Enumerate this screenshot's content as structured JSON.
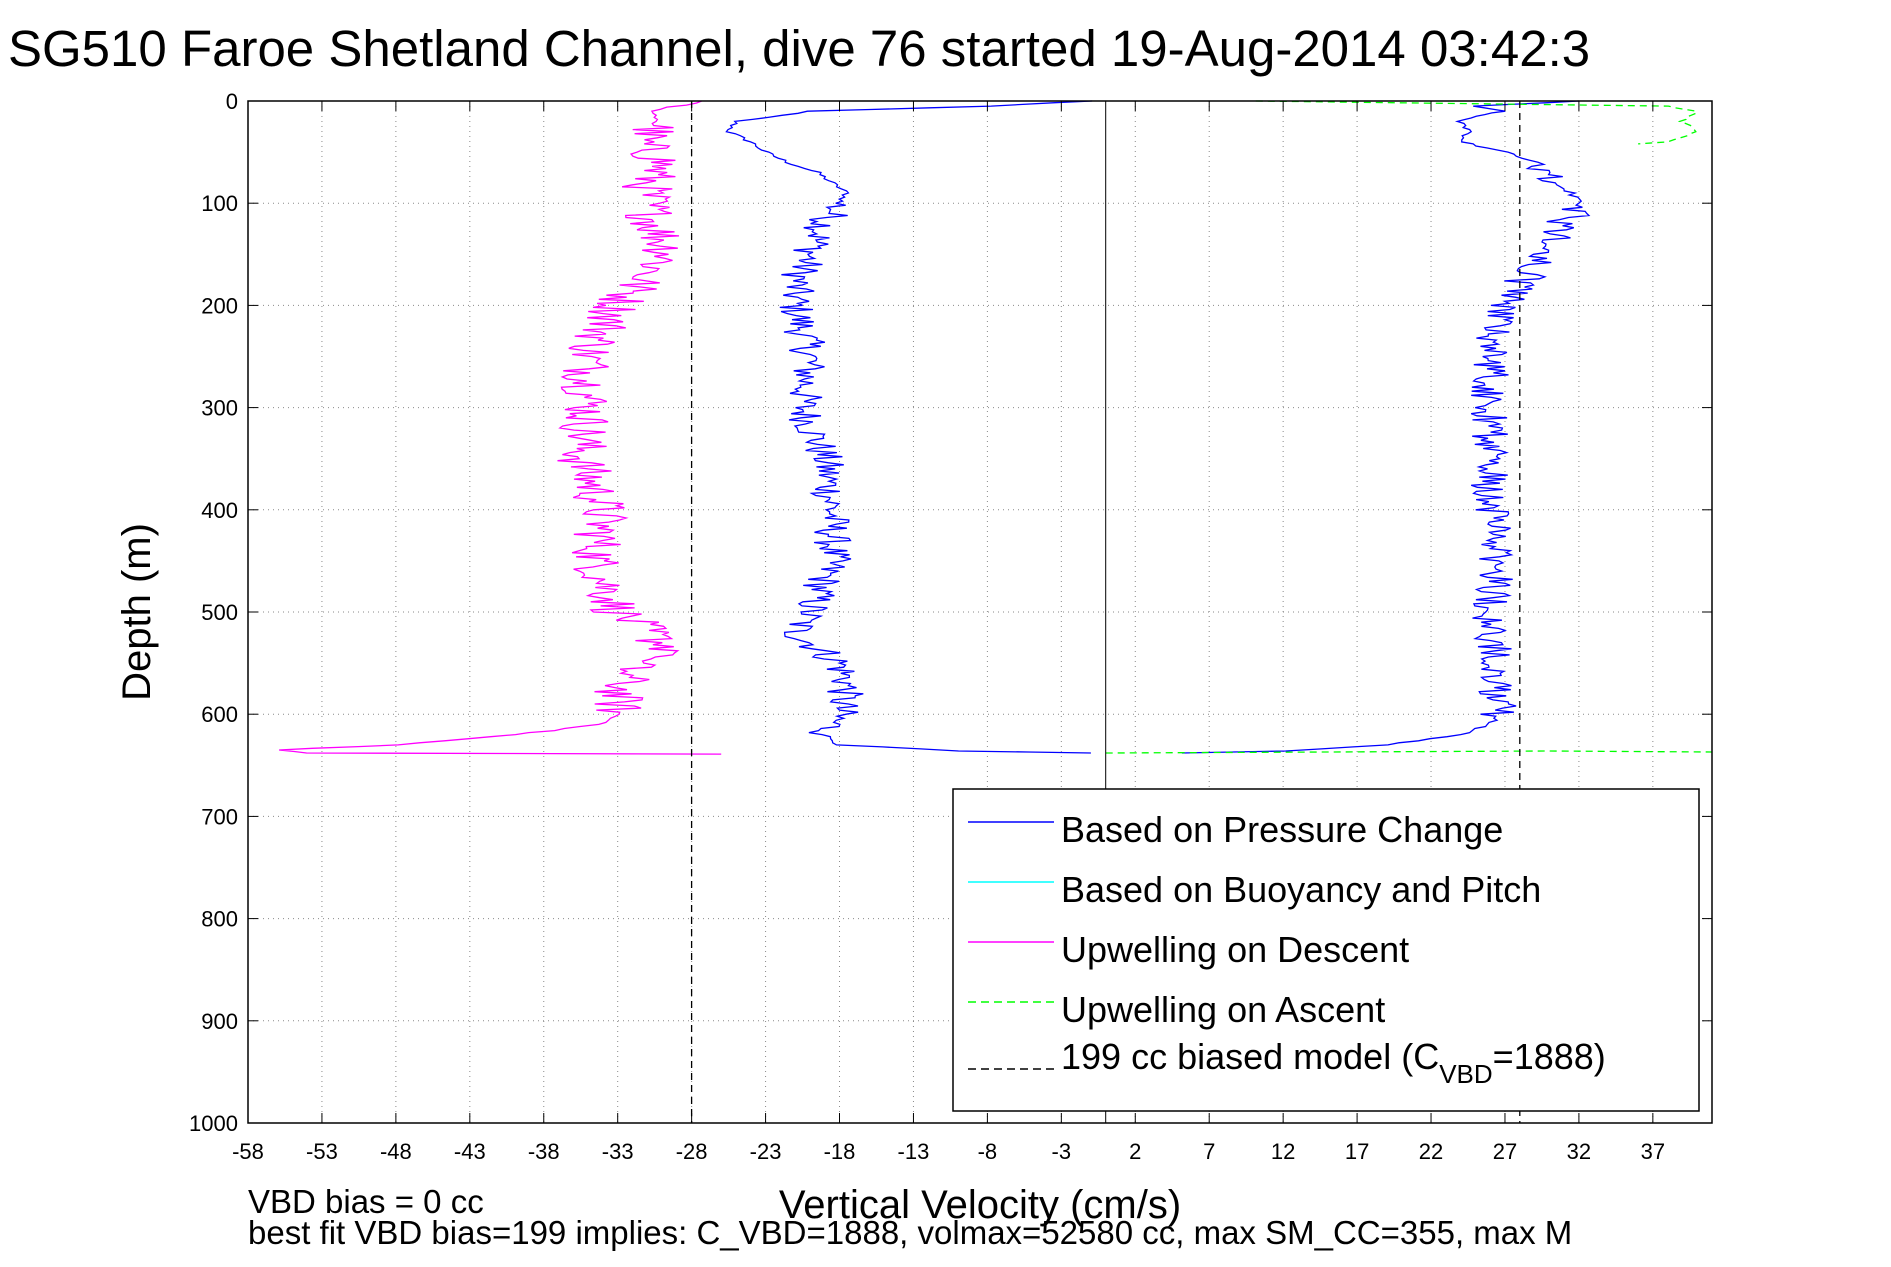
{
  "figure": {
    "title": "SG510 Faroe Shetland Channel, dive 76 started 19-Aug-2014 03:42:3",
    "footer_line1": "VBD bias = 0 cc",
    "footer_line2": "best fit VBD bias=199 implies: C_VBD=1888, volmax=52580 cc, max SM_CC=355, max M"
  },
  "legend": {
    "items": [
      {
        "label": "Based on Pressure Change",
        "color": "#0000ff",
        "dash": "solid"
      },
      {
        "label": "Based on Buoyancy and Pitch",
        "color": "#00ffff",
        "dash": "solid"
      },
      {
        "label": "Upwelling on Descent",
        "color": "#ff00ff",
        "dash": "solid"
      },
      {
        "label": "Upwelling on Ascent",
        "color": "#00ff00",
        "dash": "dashed"
      },
      {
        "label_pre": "199 cc biased model (C",
        "label_sub": "VBD",
        "label_post": "=1888)",
        "color": "#000000",
        "dash": "dashed"
      }
    ]
  },
  "chart_data": {
    "type": "line",
    "title": "SG510 Faroe Shetland Channel, dive 76 started 19-Aug-2014 03:42:3",
    "xlabel": "Vertical Velocity (cm/s)",
    "ylabel": "Depth (m)",
    "xlim": [
      -58,
      41
    ],
    "ylim": [
      0,
      1000
    ],
    "y_reversed": true,
    "grid": true,
    "legend_position": "lower-right",
    "xticks": [
      -58,
      -53,
      -48,
      -43,
      -38,
      -33,
      -28,
      -23,
      -18,
      -13,
      -8,
      -3,
      2,
      7,
      12,
      17,
      22,
      27,
      32,
      37
    ],
    "yticks": [
      0,
      100,
      200,
      300,
      400,
      500,
      600,
      700,
      800,
      900,
      1000
    ],
    "series": [
      {
        "name": "Based on Pressure Change (descent)",
        "color": "#0000ff",
        "dash": "solid",
        "depth": [
          0,
          5,
          10,
          20,
          30,
          40,
          50,
          60,
          70,
          80,
          90,
          100,
          120,
          150,
          180,
          200,
          250,
          300,
          350,
          400,
          450,
          500,
          520,
          550,
          570,
          600,
          620,
          630,
          636,
          638
        ],
        "values": [
          -1,
          -8,
          -20,
          -25,
          -25.5,
          -24,
          -23,
          -21.5,
          -19.5,
          -18.5,
          -17.5,
          -18,
          -19,
          -20,
          -21,
          -21,
          -20,
          -20.5,
          -19,
          -18.5,
          -18.5,
          -20,
          -21,
          -18,
          -17.5,
          -18,
          -19,
          -18,
          -10,
          -1
        ]
      },
      {
        "name": "Based on Pressure Change (ascent)",
        "color": "#0000ff",
        "dash": "solid",
        "depth": [
          638,
          636,
          630,
          620,
          610,
          600,
          550,
          500,
          450,
          400,
          350,
          300,
          250,
          220,
          200,
          180,
          160,
          140,
          120,
          100,
          90,
          80,
          60,
          50,
          40,
          30,
          20,
          15,
          10,
          5,
          0
        ],
        "values": [
          5,
          12,
          19,
          24,
          26,
          26.5,
          26.5,
          26,
          26.5,
          26,
          26,
          26,
          26,
          26.5,
          27,
          28,
          29,
          30,
          31,
          32,
          31.5,
          30,
          29,
          27,
          24,
          24.5,
          24,
          25,
          27,
          25,
          32
        ]
      },
      {
        "name": "Upwelling on Descent",
        "color": "#ff00ff",
        "dash": "solid",
        "depth": [
          0,
          10,
          20,
          40,
          60,
          80,
          100,
          120,
          150,
          170,
          200,
          250,
          300,
          350,
          400,
          450,
          500,
          540,
          550,
          580,
          600,
          610,
          620,
          630,
          635,
          638,
          639
        ],
        "values": [
          -27,
          -31,
          -30,
          -31.5,
          -30,
          -31,
          -31,
          -30.5,
          -29.5,
          -31,
          -33,
          -35,
          -35,
          -35.5,
          -34,
          -34.5,
          -33,
          -29,
          -32,
          -33,
          -33,
          -34,
          -40,
          -48,
          -56,
          -54,
          -26
        ]
      },
      {
        "name": "Upwelling on Ascent",
        "color": "#00ff00",
        "dash": "dashed",
        "depth": [
          0,
          5,
          10,
          20,
          30,
          40,
          42
        ],
        "values": [
          10,
          38,
          40,
          39,
          40,
          38,
          36
        ]
      },
      {
        "name": "Upwelling on Ascent (bottom)",
        "color": "#00ff00",
        "dash": "dashed",
        "depth": [
          638,
          637,
          636,
          637
        ],
        "values": [
          0,
          15,
          30,
          41
        ]
      },
      {
        "name": "199 cc biased model (descent)",
        "color": "#000000",
        "dash": "dashed",
        "depth": [
          0,
          1000
        ],
        "values": [
          -28,
          -28
        ]
      },
      {
        "name": "199 cc biased model (ascent)",
        "color": "#000000",
        "dash": "dashed",
        "depth": [
          0,
          1000
        ],
        "values": [
          28,
          28
        ]
      },
      {
        "name": "zero reference",
        "color": "#000000",
        "dash": "solid",
        "depth": [
          0,
          1000
        ],
        "values": [
          0,
          0
        ]
      }
    ]
  }
}
